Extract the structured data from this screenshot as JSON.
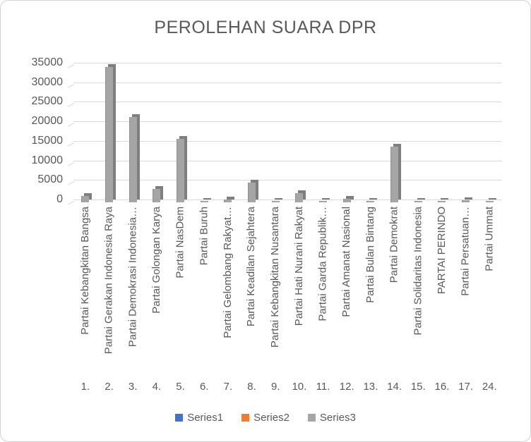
{
  "frame": {
    "background": "#ffffff",
    "border_color": "#d2d2d2",
    "text_color": "#595959",
    "gridline_color": "#d9d9d9"
  },
  "chart_data": {
    "type": "bar",
    "title": "PEROLEHAN SUARA DPR",
    "bar_style": "3d-column",
    "grid": true,
    "legend_position": "bottom",
    "ylim": [
      0,
      35000
    ],
    "ytick_step": 5000,
    "ytick_labels": [
      35000,
      30000,
      25000,
      20000,
      15000,
      10000,
      5000,
      0
    ],
    "categories": [
      "Partai Kebangkitan Bangsa",
      "Partai Gerakan Indonesia Raya",
      "Partai Demokrasi Indonesia…",
      "Partai Golongan Karya",
      "Partai NasDem",
      "Partai Buruh",
      "Partai Gelombang Rakyat…",
      "Partai Keadilan Sejahtera",
      "Partai Kebangkitan Nusantara",
      "Partai Hati Nurani Rakyat",
      "Partai Garda Republik…",
      "Partai Amanat Nasional",
      "Partai Bulan Bintang",
      "Partai Demokrat",
      "Partai Solidaritas Indonesia",
      "PARTAI PERINDO",
      "Partai Persatuan…",
      "Partai Ummat"
    ],
    "category_numbers": [
      "1.",
      "2.",
      "3.",
      "4.",
      "5.",
      "6.",
      "7.",
      "8.",
      "9.",
      "10.",
      "11.",
      "12.",
      "13.",
      "14.",
      "15.",
      "16.",
      "17.",
      "24."
    ],
    "series": [
      {
        "name": "Series1",
        "color": "#4472c4",
        "visible_bars": false,
        "values": []
      },
      {
        "name": "Series2",
        "color": "#ed7d31",
        "visible_bars": false,
        "values": []
      },
      {
        "name": "Series3",
        "color": "#a5a5a5",
        "side_color": "#7f7f7f",
        "visible_bars": true,
        "values": [
          1600,
          34700,
          21900,
          3400,
          16300,
          350,
          800,
          5100,
          250,
          2300,
          250,
          950,
          350,
          14200,
          400,
          150,
          500,
          150
        ]
      }
    ]
  }
}
